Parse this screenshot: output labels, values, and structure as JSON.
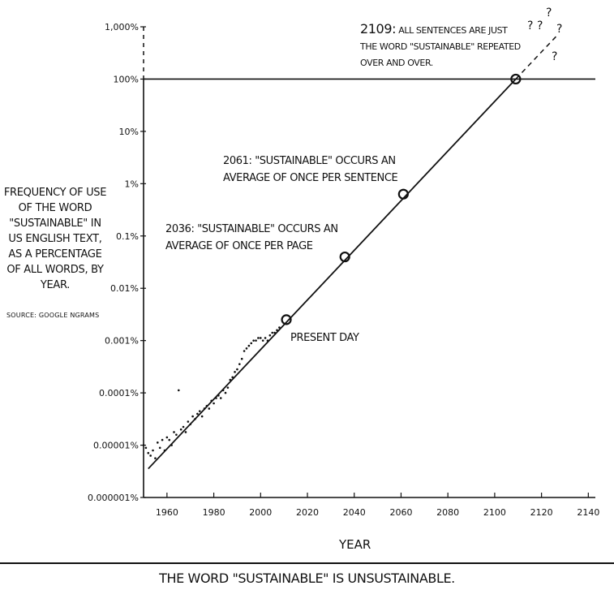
{
  "chart_data": {
    "type": "line",
    "title": "",
    "caption": "THE WORD \"SUSTAINABLE\" IS UNSUSTAINABLE.",
    "xlabel": "YEAR",
    "ylabel": "FREQUENCY OF USE OF THE WORD \"SUSTAINABLE\" IN US ENGLISH TEXT, AS A PERCENTAGE OF ALL WORDS, BY YEAR.",
    "source": "SOURCE: GOOGLE NGRAMS",
    "y_scale": "log",
    "xlim": [
      1950,
      2143
    ],
    "ylim_exponent": [
      -6,
      3
    ],
    "x_ticks": [
      1960,
      1980,
      2000,
      2020,
      2040,
      2060,
      2080,
      2100,
      2120,
      2140
    ],
    "y_ticks": [
      {
        "label": "0.000001%",
        "exp": -6
      },
      {
        "label": "0.00001%",
        "exp": -5
      },
      {
        "label": "0.0001%",
        "exp": -4
      },
      {
        "label": "0.001%",
        "exp": -3
      },
      {
        "label": "0.01%",
        "exp": -2
      },
      {
        "label": "0.1%",
        "exp": -1
      },
      {
        "label": "1%",
        "exp": 0
      },
      {
        "label": "10%",
        "exp": 1
      },
      {
        "label": "100%",
        "exp": 2
      },
      {
        "label": "1,000%",
        "exp": 3
      }
    ],
    "reference_line": {
      "label": "100%",
      "exp": 2
    },
    "observed_points": [
      {
        "x": 1950,
        "exp": -5.0
      },
      {
        "x": 1951,
        "exp": -5.05
      },
      {
        "x": 1952,
        "exp": -5.15
      },
      {
        "x": 1953,
        "exp": -5.2
      },
      {
        "x": 1954,
        "exp": -5.1
      },
      {
        "x": 1955,
        "exp": -5.25
      },
      {
        "x": 1956,
        "exp": -4.95
      },
      {
        "x": 1957,
        "exp": -5.05
      },
      {
        "x": 1958,
        "exp": -4.9
      },
      {
        "x": 1959,
        "exp": -5.1
      },
      {
        "x": 1960,
        "exp": -4.85
      },
      {
        "x": 1961,
        "exp": -4.9
      },
      {
        "x": 1962,
        "exp": -5.0
      },
      {
        "x": 1963,
        "exp": -4.75
      },
      {
        "x": 1964,
        "exp": -4.8
      },
      {
        "x": 1965,
        "exp": -3.95
      },
      {
        "x": 1966,
        "exp": -4.7
      },
      {
        "x": 1967,
        "exp": -4.65
      },
      {
        "x": 1968,
        "exp": -4.75
      },
      {
        "x": 1969,
        "exp": -4.55
      },
      {
        "x": 1970,
        "exp": -4.6
      },
      {
        "x": 1971,
        "exp": -4.45
      },
      {
        "x": 1972,
        "exp": -4.5
      },
      {
        "x": 1973,
        "exp": -4.4
      },
      {
        "x": 1974,
        "exp": -4.35
      },
      {
        "x": 1975,
        "exp": -4.45
      },
      {
        "x": 1976,
        "exp": -4.3
      },
      {
        "x": 1977,
        "exp": -4.25
      },
      {
        "x": 1978,
        "exp": -4.3
      },
      {
        "x": 1979,
        "exp": -4.15
      },
      {
        "x": 1980,
        "exp": -4.2
      },
      {
        "x": 1981,
        "exp": -4.1
      },
      {
        "x": 1982,
        "exp": -4.05
      },
      {
        "x": 1983,
        "exp": -4.1
      },
      {
        "x": 1984,
        "exp": -3.95
      },
      {
        "x": 1985,
        "exp": -4.0
      },
      {
        "x": 1986,
        "exp": -3.9
      },
      {
        "x": 1987,
        "exp": -3.75
      },
      {
        "x": 1988,
        "exp": -3.7
      },
      {
        "x": 1989,
        "exp": -3.6
      },
      {
        "x": 1990,
        "exp": -3.55
      },
      {
        "x": 1991,
        "exp": -3.45
      },
      {
        "x": 1992,
        "exp": -3.35
      },
      {
        "x": 1993,
        "exp": -3.2
      },
      {
        "x": 1994,
        "exp": -3.15
      },
      {
        "x": 1995,
        "exp": -3.1
      },
      {
        "x": 1996,
        "exp": -3.05
      },
      {
        "x": 1997,
        "exp": -3.0
      },
      {
        "x": 1998,
        "exp": -3.0
      },
      {
        "x": 1999,
        "exp": -2.95
      },
      {
        "x": 2000,
        "exp": -2.95
      },
      {
        "x": 2001,
        "exp": -3.0
      },
      {
        "x": 2002,
        "exp": -2.95
      },
      {
        "x": 2003,
        "exp": -3.0
      },
      {
        "x": 2004,
        "exp": -2.9
      },
      {
        "x": 2005,
        "exp": -2.85
      },
      {
        "x": 2006,
        "exp": -2.85
      },
      {
        "x": 2007,
        "exp": -2.8
      },
      {
        "x": 2008,
        "exp": -2.75
      }
    ],
    "trend_line": {
      "x_start": 1952,
      "exp_start": -5.45,
      "x_end": 2109,
      "exp_end": 2.0
    },
    "extrapolation": {
      "x_start": 2109,
      "exp_start": 2.0,
      "x_end": 2127,
      "exp_end": 2.85
    },
    "milestones": [
      {
        "x": 2011,
        "exp": -2.6,
        "label": "PRESENT DAY"
      },
      {
        "x": 2036,
        "exp": -1.4,
        "year": "2036:",
        "text": "\"SUSTAINABLE\" OCCURS AN AVERAGE OF ONCE PER PAGE"
      },
      {
        "x": 2061,
        "exp": -0.2,
        "year": "2061:",
        "text": "\"SUSTAINABLE\" OCCURS AN AVERAGE OF ONCE PER SENTENCE"
      },
      {
        "x": 2109,
        "exp": 2.0,
        "year": "2109:",
        "text": "ALL SENTENCES ARE JUST THE WORD \"SUSTAINABLE\" REPEATED OVER AND OVER."
      }
    ],
    "question_marks": [
      "?",
      "?",
      "?",
      "?",
      "?"
    ]
  }
}
